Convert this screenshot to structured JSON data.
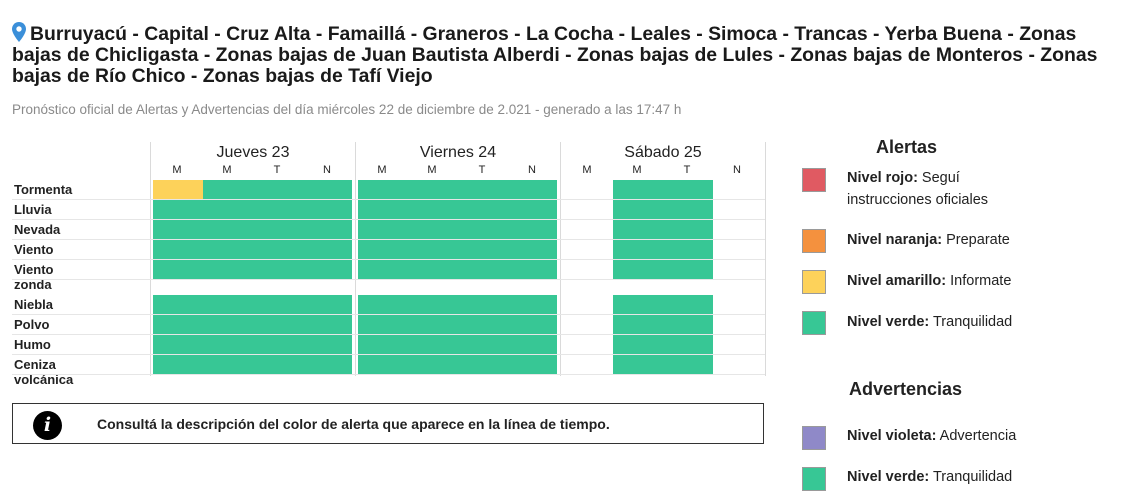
{
  "header": {
    "title": "Burruyacú - Capital - Cruz Alta - Famaillá - Graneros - La Cocha - Leales - Simoca - Trancas - Yerba Buena - Zonas bajas de Chicligasta - Zonas bajas de Juan Bautista Alberdi - Zonas bajas de Lules - Zonas bajas de Monteros - Zonas bajas de Río Chico - Zonas bajas de Tafí Viejo",
    "subtitle": "Pronóstico oficial de Alertas y Advertencias del día miércoles 22 de diciembre de 2.021 - generado a las 17:47 h",
    "pin_icon": "location-pin-icon"
  },
  "days": [
    {
      "label": "Jueves 23",
      "periods": [
        "M",
        "M",
        "T",
        "N"
      ]
    },
    {
      "label": "Viernes 24",
      "periods": [
        "M",
        "M",
        "T",
        "N"
      ]
    },
    {
      "label": "Sábado 25",
      "periods": [
        "M",
        "M",
        "T",
        "N"
      ]
    }
  ],
  "hazards": [
    {
      "label": "Tormenta",
      "levels": [
        "amarillo",
        "verde",
        "verde",
        "verde",
        "verde",
        "verde",
        "verde",
        "verde",
        "none",
        "verde",
        "verde",
        "none"
      ]
    },
    {
      "label": "Lluvia",
      "levels": [
        "verde",
        "verde",
        "verde",
        "verde",
        "verde",
        "verde",
        "verde",
        "verde",
        "none",
        "verde",
        "verde",
        "none"
      ]
    },
    {
      "label": "Nevada",
      "levels": [
        "verde",
        "verde",
        "verde",
        "verde",
        "verde",
        "verde",
        "verde",
        "verde",
        "none",
        "verde",
        "verde",
        "none"
      ]
    },
    {
      "label": "Viento",
      "levels": [
        "verde",
        "verde",
        "verde",
        "verde",
        "verde",
        "verde",
        "verde",
        "verde",
        "none",
        "verde",
        "verde",
        "none"
      ]
    },
    {
      "label": "Viento zonda",
      "levels": [
        "verde",
        "verde",
        "verde",
        "verde",
        "verde",
        "verde",
        "verde",
        "verde",
        "none",
        "verde",
        "verde",
        "none"
      ]
    },
    {
      "label": "Niebla",
      "levels": [
        "verde",
        "verde",
        "verde",
        "verde",
        "verde",
        "verde",
        "verde",
        "verde",
        "none",
        "verde",
        "verde",
        "none"
      ]
    },
    {
      "label": "Polvo",
      "levels": [
        "verde",
        "verde",
        "verde",
        "verde",
        "verde",
        "verde",
        "verde",
        "verde",
        "none",
        "verde",
        "verde",
        "none"
      ]
    },
    {
      "label": "Humo",
      "levels": [
        "verde",
        "verde",
        "verde",
        "verde",
        "verde",
        "verde",
        "verde",
        "verde",
        "none",
        "verde",
        "verde",
        "none"
      ]
    },
    {
      "label": "Ceniza volcánica",
      "levels": [
        "verde",
        "verde",
        "verde",
        "verde",
        "verde",
        "verde",
        "verde",
        "verde",
        "none",
        "verde",
        "verde",
        "none"
      ]
    }
  ],
  "colors": {
    "rojo": "#e05a62",
    "naranja": "#f4913e",
    "amarillo": "#fdd25a",
    "verde": "#37c795",
    "violeta": "#8f89c8"
  },
  "info": {
    "icon": "info-icon",
    "text": "Consultá la descripción del color de alerta que aparece en la línea de tiempo."
  },
  "legend": {
    "alertas_title": "Alertas",
    "alertas": [
      {
        "name": "Nivel rojo:",
        "desc": "Seguí instrucciones oficiales",
        "color": "#e05a62"
      },
      {
        "name": "Nivel naranja:",
        "desc": "Preparate",
        "color": "#f4913e"
      },
      {
        "name": "Nivel amarillo:",
        "desc": "Informate",
        "color": "#fdd25a"
      },
      {
        "name": "Nivel verde:",
        "desc": "Tranquilidad",
        "color": "#37c795"
      }
    ],
    "advertencias_title": "Advertencias",
    "advertencias": [
      {
        "name": "Nivel violeta:",
        "desc": "Advertencia",
        "color": "#8f89c8"
      },
      {
        "name": "Nivel verde:",
        "desc": "Tranquilidad",
        "color": "#37c795"
      }
    ]
  }
}
